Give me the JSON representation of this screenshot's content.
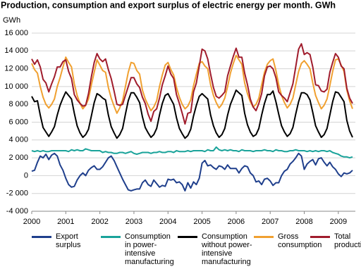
{
  "chart_data": {
    "type": "line",
    "title": "Production, consumption and export surplus of electric energy per month. GWh",
    "y_label": "GWh",
    "xlim": [
      2000,
      2009.5
    ],
    "xticks": [
      2000,
      2001,
      2002,
      2003,
      2004,
      2005,
      2006,
      2007,
      2008,
      2009
    ],
    "ylim": [
      -4000,
      16000
    ],
    "yticks": [
      {
        "value": -4000,
        "label": "-4 000"
      },
      {
        "value": -2000,
        "label": "-2 000"
      },
      0,
      {
        "value": 2000,
        "label": "2 000"
      },
      {
        "value": 4000,
        "label": "4 000"
      },
      {
        "value": 6000,
        "label": "6 000"
      },
      {
        "value": 8000,
        "label": "8 000"
      },
      {
        "value": 10000,
        "label": "10 000"
      },
      {
        "value": 12000,
        "label": "12 000"
      },
      {
        "value": 14000,
        "label": "14 000"
      },
      {
        "value": 16000,
        "label": "16 000"
      }
    ],
    "grid": true,
    "legend": "bottom",
    "x": [
      2000,
      2000.083,
      2000.167,
      2000.25,
      2000.333,
      2000.417,
      2000.5,
      2000.583,
      2000.667,
      2000.75,
      2000.833,
      2000.917,
      2001,
      2001.083,
      2001.167,
      2001.25,
      2001.333,
      2001.417,
      2001.5,
      2001.583,
      2001.667,
      2001.75,
      2001.833,
      2001.917,
      2002,
      2002.083,
      2002.167,
      2002.25,
      2002.333,
      2002.417,
      2002.5,
      2002.583,
      2002.667,
      2002.75,
      2002.833,
      2002.917,
      2003,
      2003.083,
      2003.167,
      2003.25,
      2003.333,
      2003.417,
      2003.5,
      2003.583,
      2003.667,
      2003.75,
      2003.833,
      2003.917,
      2004,
      2004.083,
      2004.167,
      2004.25,
      2004.333,
      2004.417,
      2004.5,
      2004.583,
      2004.667,
      2004.75,
      2004.833,
      2004.917,
      2005,
      2005.083,
      2005.167,
      2005.25,
      2005.333,
      2005.417,
      2005.5,
      2005.583,
      2005.667,
      2005.75,
      2005.833,
      2005.917,
      2006,
      2006.083,
      2006.167,
      2006.25,
      2006.333,
      2006.417,
      2006.5,
      2006.583,
      2006.667,
      2006.75,
      2006.833,
      2006.917,
      2007,
      2007.083,
      2007.167,
      2007.25,
      2007.333,
      2007.417,
      2007.5,
      2007.583,
      2007.667,
      2007.75,
      2007.833,
      2007.917,
      2008,
      2008.083,
      2008.167,
      2008.25,
      2008.333,
      2008.417,
      2008.5,
      2008.583,
      2008.667,
      2008.75,
      2008.833,
      2008.917,
      2009,
      2009.083,
      2009.167,
      2009.25,
      2009.333,
      2009.417
    ],
    "series": [
      {
        "name": "Export surplus",
        "color": "#1f3f8c",
        "values": [
          500,
          600,
          1500,
          2200,
          2000,
          2400,
          1800,
          2300,
          2500,
          2200,
          1200,
          600,
          -300,
          -1000,
          -1300,
          -1200,
          -500,
          0,
          300,
          0,
          600,
          900,
          1100,
          700,
          700,
          1000,
          1500,
          2000,
          2200,
          1700,
          1000,
          300,
          -400,
          -1000,
          -1600,
          -1700,
          -1600,
          -1500,
          -1500,
          -800,
          -500,
          -1000,
          -1200,
          -500,
          -900,
          -1300,
          -1100,
          -1200,
          -400,
          -500,
          -400,
          -800,
          -700,
          -1000,
          -1700,
          -800,
          -1400,
          -700,
          -1000,
          -300,
          1400,
          1700,
          1100,
          1200,
          900,
          700,
          1100,
          1000,
          700,
          1200,
          800,
          800,
          800,
          300,
          800,
          1100,
          1000,
          300,
          0,
          -700,
          -600,
          -1000,
          -400,
          -300,
          -600,
          -1100,
          -800,
          -800,
          0,
          500,
          700,
          1300,
          1600,
          2000,
          2500,
          2200,
          700,
          1300,
          1600,
          1800,
          1200,
          1900,
          2000,
          1500,
          1100,
          1500,
          1000,
          700,
          200,
          -100,
          300,
          200,
          300,
          600
        ]
      },
      {
        "name": "Consumption in power-intensive manufacturing",
        "color": "#1aa39a",
        "values": [
          2800,
          2700,
          2800,
          2700,
          2800,
          2700,
          2700,
          2800,
          2800,
          2800,
          2800,
          2800,
          2800,
          2700,
          2900,
          2800,
          2900,
          2800,
          2800,
          3000,
          2900,
          2800,
          2800,
          2800,
          2800,
          2600,
          2700,
          2600,
          2600,
          2500,
          2500,
          2600,
          2600,
          2500,
          2600,
          2700,
          2500,
          2400,
          2500,
          2600,
          2600,
          2600,
          2500,
          2600,
          2600,
          2700,
          2600,
          2600,
          2700,
          2700,
          2600,
          2800,
          2700,
          2700,
          2700,
          2800,
          2700,
          2800,
          2800,
          2800,
          2800,
          2700,
          2900,
          2800,
          2800,
          3200,
          2900,
          2800,
          2900,
          2800,
          2900,
          2800,
          2800,
          2700,
          2900,
          2800,
          2800,
          2800,
          2700,
          2800,
          2800,
          2800,
          2900,
          2800,
          2800,
          2700,
          2900,
          2800,
          2800,
          2700,
          2700,
          2800,
          2800,
          2900,
          2800,
          2800,
          2800,
          2700,
          2800,
          2700,
          2800,
          2700,
          2800,
          2800,
          2700,
          2800,
          2600,
          2500,
          2400,
          2200,
          2100,
          2100,
          2000,
          2100
        ]
      },
      {
        "name": "Consumption without power-intensive manufacturing",
        "color": "#000000",
        "values": [
          8900,
          8300,
          8400,
          6800,
          5400,
          4900,
          4400,
          4900,
          5500,
          6800,
          7900,
          8700,
          9400,
          9000,
          8600,
          7000,
          5600,
          4800,
          4300,
          4600,
          5200,
          6700,
          8200,
          9200,
          9000,
          8700,
          8500,
          6800,
          5500,
          4800,
          4200,
          4600,
          5300,
          6900,
          8400,
          9300,
          9300,
          8800,
          8200,
          6600,
          5400,
          4800,
          4300,
          4600,
          5300,
          6800,
          8100,
          9000,
          9200,
          8600,
          8000,
          6500,
          5300,
          4700,
          4200,
          4500,
          5200,
          6700,
          7900,
          8900,
          9200,
          8900,
          8600,
          6800,
          5600,
          4800,
          4300,
          4600,
          5300,
          6800,
          8000,
          8800,
          9600,
          9300,
          9000,
          7000,
          5700,
          4900,
          4400,
          4600,
          5300,
          6800,
          8100,
          9100,
          9100,
          9500,
          8300,
          6900,
          5600,
          4900,
          4400,
          4700,
          5400,
          6900,
          8300,
          9300,
          9300,
          9100,
          8500,
          7100,
          5600,
          4900,
          4300,
          4600,
          5300,
          6800,
          8300,
          9400,
          9300,
          8800,
          8300,
          6200,
          5000,
          4300
        ]
      },
      {
        "name": "Gross consumption",
        "color": "#f0a030",
        "values": [
          12600,
          11900,
          11500,
          10000,
          8800,
          8000,
          7600,
          8000,
          8600,
          10000,
          11000,
          12200,
          13300,
          12700,
          12200,
          10300,
          9000,
          8100,
          7500,
          7900,
          8600,
          10200,
          11600,
          13000,
          12400,
          11800,
          11600,
          9900,
          8700,
          7800,
          7000,
          7600,
          8400,
          10000,
          11600,
          12700,
          12600,
          11800,
          11400,
          9600,
          8600,
          7900,
          7300,
          7700,
          8400,
          10000,
          11300,
          12400,
          12700,
          11900,
          11300,
          9900,
          8800,
          8000,
          7500,
          7800,
          8500,
          10100,
          11400,
          12600,
          12800,
          12300,
          12000,
          10200,
          9000,
          8200,
          7600,
          8000,
          8700,
          10000,
          11500,
          12600,
          13500,
          13000,
          12500,
          10400,
          9200,
          8300,
          7700,
          8000,
          8700,
          10200,
          11600,
          12500,
          12900,
          13100,
          11800,
          10200,
          9000,
          8200,
          7600,
          8000,
          8700,
          10200,
          11700,
          12600,
          12900,
          12500,
          12000,
          10400,
          9000,
          8200,
          7500,
          7900,
          8600,
          10100,
          11700,
          13000,
          13100,
          12400,
          11700,
          9600,
          8400,
          7500
        ]
      },
      {
        "name": "Total production",
        "color": "#a01c2c",
        "values": [
          13100,
          12500,
          13000,
          12200,
          10800,
          10400,
          9400,
          10300,
          11100,
          12200,
          12200,
          12800,
          13000,
          11700,
          10900,
          9100,
          8500,
          8100,
          7800,
          7900,
          9200,
          11100,
          12700,
          13700,
          13100,
          12800,
          13100,
          11900,
          10900,
          9500,
          8000,
          7900,
          8000,
          9000,
          10000,
          11000,
          11000,
          10300,
          9900,
          8800,
          8100,
          6900,
          6100,
          7200,
          7500,
          8700,
          10200,
          11200,
          12300,
          11400,
          10900,
          9100,
          8100,
          7000,
          5800,
          7000,
          7100,
          9400,
          10400,
          12300,
          14200,
          14000,
          13100,
          11400,
          9900,
          8900,
          8700,
          9000,
          9400,
          11200,
          12300,
          13400,
          14300,
          13300,
          13300,
          11500,
          10200,
          8600,
          7700,
          7300,
          8100,
          9200,
          11200,
          12200,
          12300,
          12000,
          11000,
          9400,
          9000,
          8700,
          8300,
          9300,
          10300,
          12200,
          14200,
          14800,
          13600,
          13800,
          13600,
          12200,
          10200,
          10100,
          9500,
          9400,
          9700,
          11600,
          12700,
          13700,
          13300,
          12300,
          12000,
          9800,
          8700,
          8100
        ]
      }
    ]
  }
}
